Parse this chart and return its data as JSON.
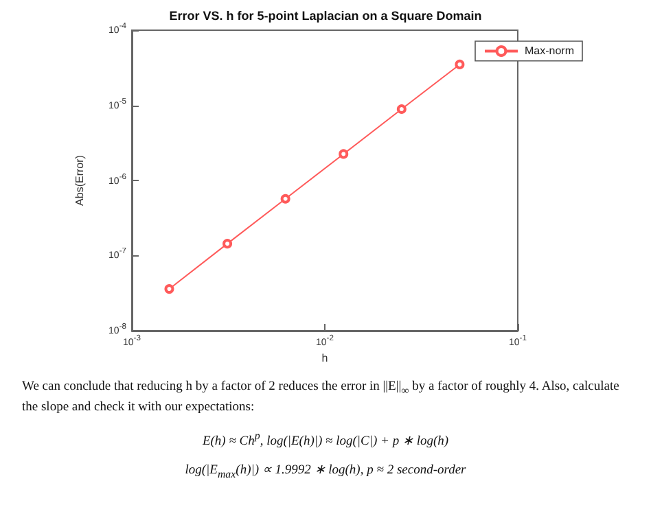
{
  "chart_data": {
    "type": "line",
    "title": "Error VS. h for 5-point Laplacian on a Square Domain",
    "xlabel": "h",
    "ylabel": "Abs(Error)",
    "x": [
      0.0015625,
      0.003125,
      0.00625,
      0.0125,
      0.025,
      0.05
    ],
    "series": [
      {
        "name": "Max-norm",
        "color": "#ff5a5a",
        "values": [
          3.6e-08,
          1.44e-07,
          5.7e-07,
          2.25e-06,
          8.9e-06,
          3.5e-05
        ]
      }
    ],
    "log": "xy",
    "xlim": [
      0.001,
      0.1
    ],
    "ylim": [
      1e-08,
      0.0001
    ],
    "xticks": [
      {
        "value": 0.001,
        "label": "10$^{-3}$"
      },
      {
        "value": 0.01,
        "label": "10$^{-2}$"
      },
      {
        "value": 0.1,
        "label": "10$^{-1}$"
      }
    ],
    "yticks": [
      {
        "value": 1e-08,
        "label": "10$^{-8}$"
      },
      {
        "value": 1e-07,
        "label": "10$^{-7}$"
      },
      {
        "value": 1e-06,
        "label": "10$^{-6}$"
      },
      {
        "value": 1e-05,
        "label": "10$^{-5}$"
      },
      {
        "value": 0.0001,
        "label": "10$^{-4}$"
      }
    ],
    "marker": "circle",
    "line_style": "solid",
    "grid": false,
    "legend": "top right",
    "annotations": [
      "We can conclude that reducing h by a factor of 2 reduces the error in ||E||$_{∞}$ by a factor of roughly 4. Also, calculate the slope and check it with our expectations:",
      "E(h) ≈ Ch$^{p}$,    log(|E(h)|) ≈ log(|C|) + p ∗ log(h)",
      "log(|E$_{max}$(h)|) ∝ 1.9992 ∗ log(h),    p ≈ 2    second-order"
    ]
  }
}
